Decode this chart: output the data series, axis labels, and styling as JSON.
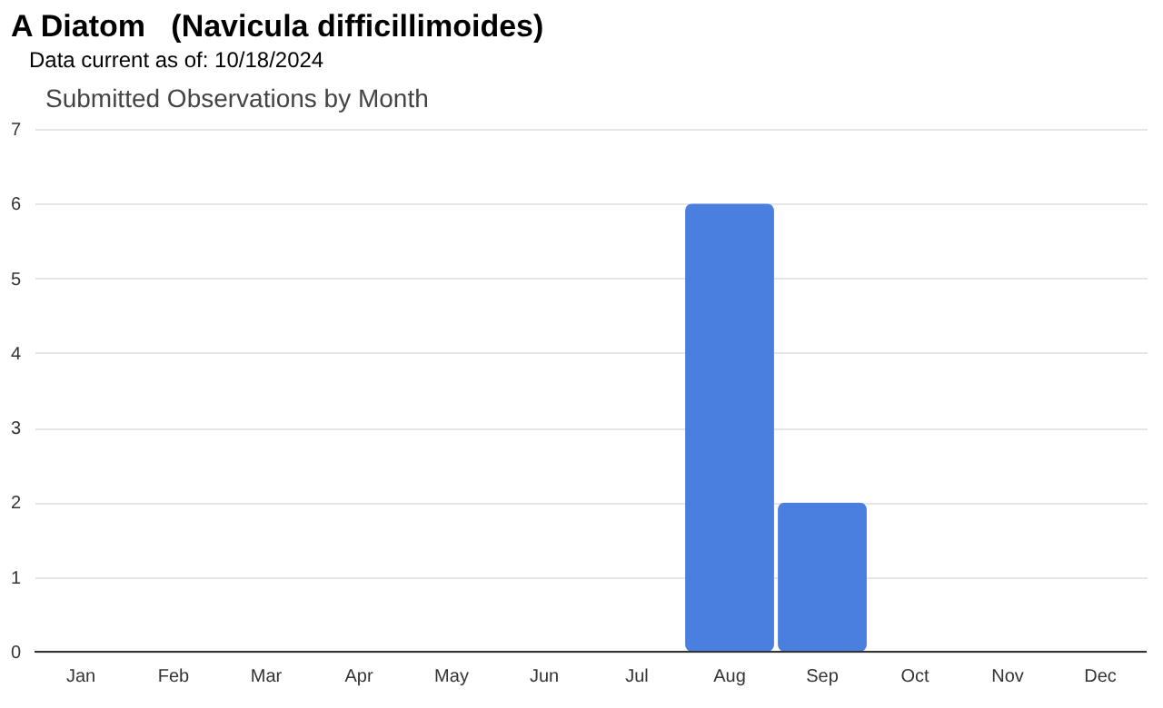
{
  "chart_data": {
    "type": "bar",
    "title": "A Diatom   (Navicula difficillimoides)",
    "subtitle": "Data current as of: 10/18/2024",
    "annotations": [
      "Submitted Observations by Month"
    ],
    "categories": [
      "Jan",
      "Feb",
      "Mar",
      "Apr",
      "May",
      "Jun",
      "Jul",
      "Aug",
      "Sep",
      "Oct",
      "Nov",
      "Dec"
    ],
    "values": [
      0,
      0,
      0,
      0,
      0,
      0,
      0,
      6,
      2,
      0,
      0,
      0
    ],
    "color": "#4a7fe0",
    "ylim": [
      0,
      7
    ],
    "yticks": [
      0,
      1,
      2,
      3,
      4,
      5,
      6,
      7
    ],
    "grid": "y"
  }
}
